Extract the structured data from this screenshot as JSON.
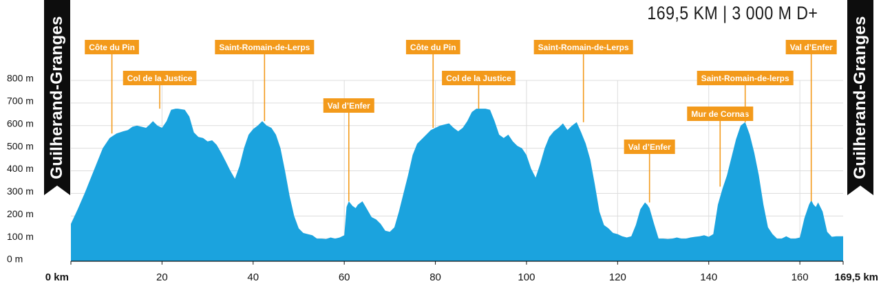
{
  "header": {
    "summary": "169,5 KM | 3 000 M D+"
  },
  "endpoints": {
    "start_label": "Guilherand-Granges",
    "end_label": "Guilherand-Granges"
  },
  "colors": {
    "profile_fill": "#1ba3de",
    "marker": "#f39a1b",
    "flag": "#0d0d0d",
    "grid": "#dcdcdc",
    "axis": "#111111",
    "marker_text": "#ffffff"
  },
  "chart_data": {
    "type": "area",
    "title": "",
    "xlabel": "",
    "ylabel": "",
    "xlim": [
      0,
      169.5
    ],
    "ylim": [
      0,
      800
    ],
    "x_ticks": [
      {
        "value": 0,
        "label": "0 km"
      },
      {
        "value": 20,
        "label": "20"
      },
      {
        "value": 40,
        "label": "40"
      },
      {
        "value": 60,
        "label": "60"
      },
      {
        "value": 80,
        "label": "80"
      },
      {
        "value": 100,
        "label": "100"
      },
      {
        "value": 120,
        "label": "120"
      },
      {
        "value": 140,
        "label": "140"
      },
      {
        "value": 160,
        "label": "160"
      },
      {
        "value": 169.5,
        "label": "169,5 km"
      }
    ],
    "y_ticks": [
      {
        "value": 0,
        "label": "0 m"
      },
      {
        "value": 100,
        "label": "100 m"
      },
      {
        "value": 200,
        "label": "200 m"
      },
      {
        "value": 300,
        "label": "300 m"
      },
      {
        "value": 400,
        "label": "400 m"
      },
      {
        "value": 500,
        "label": "500 m"
      },
      {
        "value": 600,
        "label": "600 m"
      },
      {
        "value": 700,
        "label": "700 m"
      },
      {
        "value": 800,
        "label": "800 m"
      }
    ],
    "grid": true,
    "series": [
      {
        "x": [
          0,
          1.5,
          3,
          5,
          7,
          8.5,
          10,
          11.5,
          12.5,
          13.5,
          14.5,
          15.5,
          16.5,
          17.3,
          18,
          19,
          20,
          21,
          22,
          23,
          23.5,
          25,
          26,
          27,
          28,
          29,
          30,
          31,
          32,
          33,
          34,
          35,
          36,
          37,
          38,
          39,
          40,
          41,
          42,
          43,
          44,
          45,
          46,
          47,
          48,
          49,
          50,
          51,
          52,
          53,
          54,
          55,
          56,
          57,
          58,
          59,
          60,
          60.5,
          61,
          61.8,
          62.5,
          63,
          64,
          65,
          66,
          67,
          68,
          69,
          70,
          71,
          72,
          73,
          74,
          75,
          76,
          77,
          78,
          79,
          80,
          81,
          82,
          83,
          84,
          85,
          86,
          87,
          88,
          89,
          90,
          91,
          92,
          93,
          94,
          95,
          96,
          97,
          98,
          99,
          100,
          101,
          102,
          103,
          104,
          105,
          106,
          107,
          108,
          109,
          110,
          111,
          112,
          113,
          114,
          115,
          116,
          117,
          118,
          119,
          120,
          121,
          122,
          123,
          124,
          125,
          126,
          126.5,
          127,
          127.5,
          128,
          129,
          130,
          131,
          132,
          133,
          134,
          135,
          136,
          137,
          138,
          139,
          140,
          141,
          142,
          143,
          144,
          145,
          146,
          147,
          148,
          149,
          150,
          151,
          152,
          153,
          154,
          155,
          156,
          157,
          158,
          159,
          160,
          161,
          162,
          162.5,
          163,
          163.5,
          164,
          165,
          166,
          167,
          168,
          169.5
        ],
        "y": [
          165,
          230,
          300,
          400,
          500,
          545,
          565,
          575,
          580,
          595,
          600,
          595,
          590,
          605,
          620,
          600,
          590,
          620,
          670,
          675,
          675,
          670,
          640,
          570,
          550,
          545,
          530,
          535,
          515,
          480,
          440,
          400,
          365,
          420,
          500,
          560,
          585,
          600,
          620,
          600,
          590,
          560,
          500,
          400,
          290,
          200,
          145,
          125,
          120,
          115,
          100,
          100,
          98,
          105,
          100,
          105,
          115,
          240,
          265,
          245,
          235,
          250,
          265,
          230,
          195,
          185,
          165,
          135,
          130,
          150,
          220,
          300,
          380,
          470,
          520,
          540,
          560,
          580,
          590,
          600,
          605,
          610,
          590,
          575,
          590,
          620,
          660,
          675,
          675,
          675,
          670,
          620,
          560,
          545,
          560,
          530,
          510,
          500,
          470,
          410,
          370,
          430,
          500,
          550,
          575,
          590,
          610,
          580,
          600,
          615,
          570,
          520,
          450,
          340,
          220,
          160,
          145,
          125,
          120,
          110,
          105,
          110,
          160,
          230,
          260,
          250,
          235,
          200,
          165,
          100,
          100,
          98,
          100,
          105,
          100,
          100,
          105,
          108,
          110,
          115,
          108,
          120,
          250,
          320,
          380,
          460,
          540,
          600,
          615,
          560,
          480,
          380,
          250,
          150,
          120,
          100,
          100,
          110,
          100,
          100,
          105,
          190,
          250,
          270,
          250,
          240,
          260,
          220,
          130,
          108,
          110,
          110
        ]
      }
    ],
    "annotations": [
      {
        "label": "Côte du Pin",
        "x": 9,
        "elevation": 565
      },
      {
        "label": "Col de la Justice",
        "x": 19.5,
        "elevation": 675
      },
      {
        "label": "Saint-Romain-de-Lerps",
        "x": 42.5,
        "elevation": 620
      },
      {
        "label": "Val d’Enfer",
        "x": 61,
        "elevation": 265
      },
      {
        "label": "Côte du Pin",
        "x": 79.5,
        "elevation": 590
      },
      {
        "label": "Col de la Justice",
        "x": 89.5,
        "elevation": 675
      },
      {
        "label": "Saint-Romain-de-Lerps",
        "x": 112.5,
        "elevation": 615
      },
      {
        "label": "Val d’Enfer",
        "x": 127,
        "elevation": 260
      },
      {
        "label": "Mur de Cornas",
        "x": 142.5,
        "elevation": 330
      },
      {
        "label": "Saint-Romain-de-lerps",
        "x": 148,
        "elevation": 615
      },
      {
        "label": "Val d’Enfer",
        "x": 162.5,
        "elevation": 265
      }
    ]
  }
}
